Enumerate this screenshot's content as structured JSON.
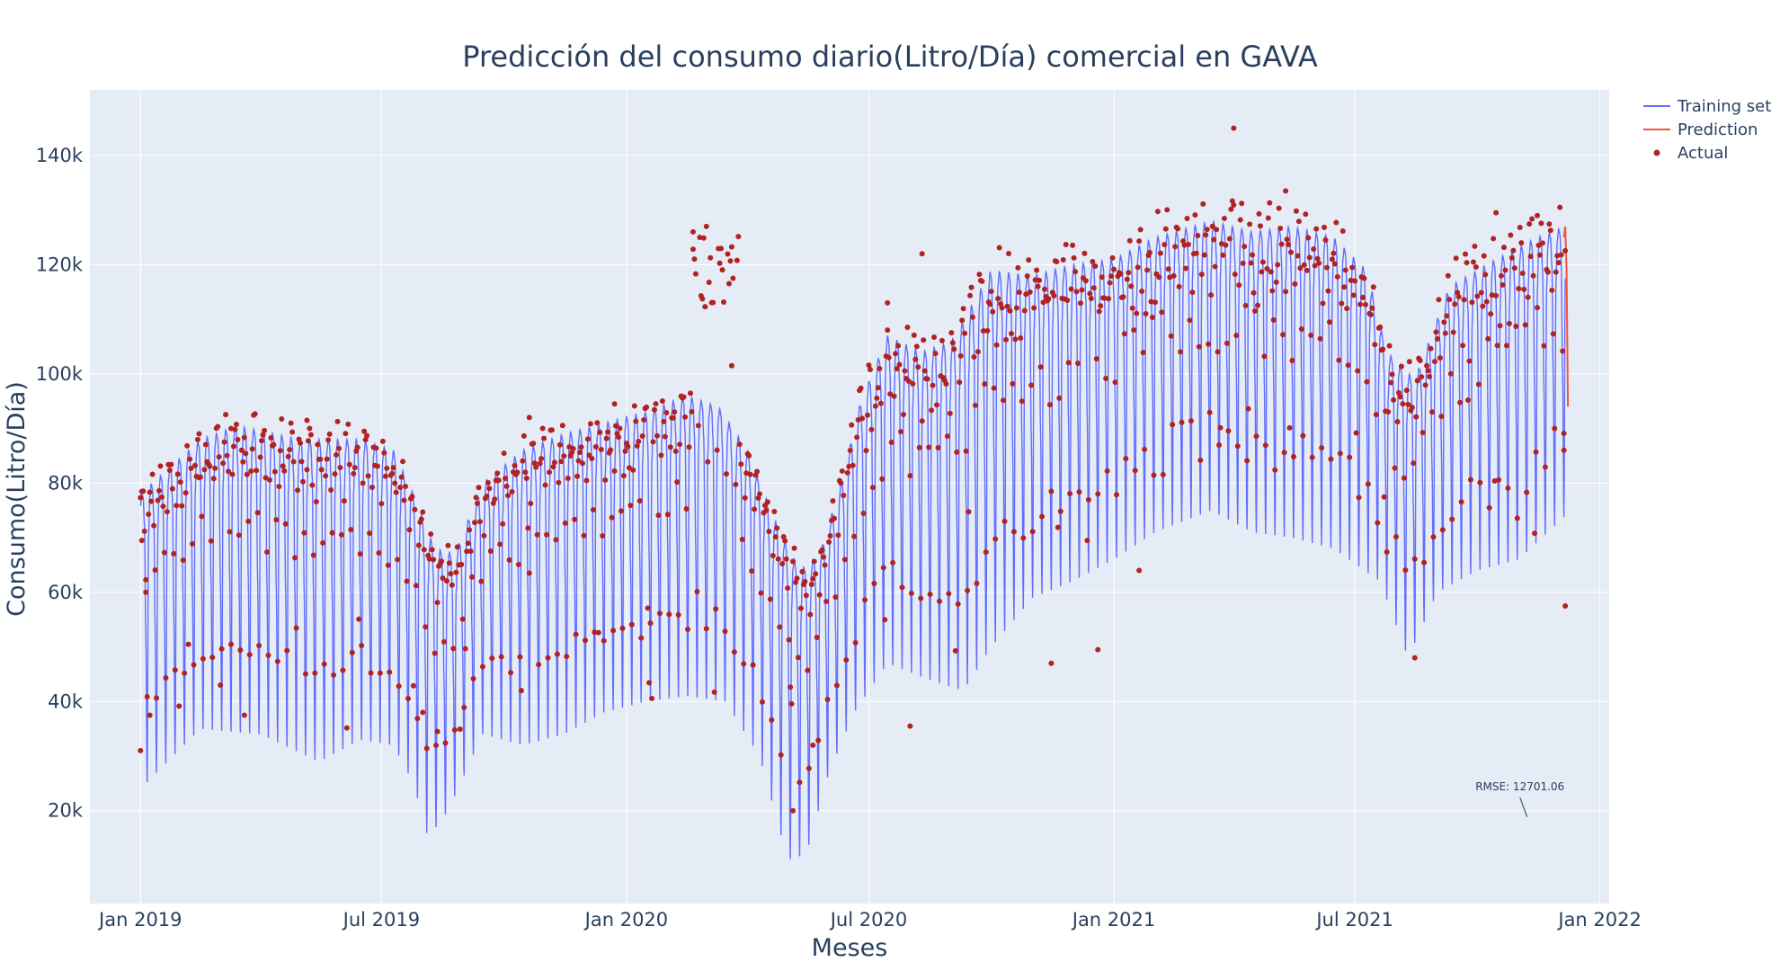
{
  "chart_data": {
    "type": "line",
    "title": "Predicción del consumo diario(Litro/Día) comercial en GAVA",
    "xlabel": "Meses",
    "ylabel": "Consumo(Litro/Día)",
    "x_range": [
      "2018-11-24",
      "2022-01-08"
    ],
    "ylim": [
      3000,
      152000
    ],
    "x_ticks": [
      {
        "date": "2019-01-01",
        "label": "Jan 2019"
      },
      {
        "date": "2019-07-01",
        "label": "Jul 2019"
      },
      {
        "date": "2020-01-01",
        "label": "Jan 2020"
      },
      {
        "date": "2020-07-01",
        "label": "Jul 2020"
      },
      {
        "date": "2021-01-01",
        "label": "Jan 2021"
      },
      {
        "date": "2021-07-01",
        "label": "Jul 2021"
      },
      {
        "date": "2022-01-01",
        "label": "Jan 2022"
      }
    ],
    "y_ticks": [
      {
        "value": 20000,
        "label": "20k"
      },
      {
        "value": 40000,
        "label": "40k"
      },
      {
        "value": 60000,
        "label": "60k"
      },
      {
        "value": 80000,
        "label": "80k"
      },
      {
        "value": 100000,
        "label": "100k"
      },
      {
        "value": 120000,
        "label": "120k"
      },
      {
        "value": 140000,
        "label": "140k"
      }
    ],
    "grid": true,
    "legend_position": "top-right",
    "colors": {
      "training": "#636efa",
      "prediction": "#ef553b",
      "actual": "#b22222",
      "plot_bg": "#e5ecf6",
      "grid": "#ffffff",
      "text": "#2a3f5f"
    },
    "series": [
      {
        "name": "Training set",
        "kind": "line",
        "start": "2019-01-01",
        "end": "2021-12-06",
        "period_days": 7,
        "weekly_high": [
          [
            "2019-01-01",
            78000
          ],
          [
            "2019-02-15",
            88000
          ],
          [
            "2019-03-15",
            90500
          ],
          [
            "2019-05-01",
            88000
          ],
          [
            "2019-06-15",
            88000
          ],
          [
            "2019-07-10",
            86000
          ],
          [
            "2019-07-25",
            78000
          ],
          [
            "2019-08-10",
            68000
          ],
          [
            "2019-08-25",
            67000
          ],
          [
            "2019-09-15",
            80000
          ],
          [
            "2019-10-15",
            86000
          ],
          [
            "2019-11-15",
            89000
          ],
          [
            "2019-12-15",
            91000
          ],
          [
            "2020-01-15",
            93000
          ],
          [
            "2020-02-15",
            96000
          ],
          [
            "2020-03-10",
            94000
          ],
          [
            "2020-04-01",
            86000
          ],
          [
            "2020-04-20",
            74000
          ],
          [
            "2020-05-10",
            64000
          ],
          [
            "2020-05-25",
            67000
          ],
          [
            "2020-06-10",
            80000
          ],
          [
            "2020-06-25",
            95000
          ],
          [
            "2020-07-15",
            107000
          ],
          [
            "2020-08-10",
            104000
          ],
          [
            "2020-09-01",
            106000
          ],
          [
            "2020-10-01",
            119000
          ],
          [
            "2020-11-01",
            118000
          ],
          [
            "2020-12-01",
            120000
          ],
          [
            "2021-01-01",
            121000
          ],
          [
            "2021-02-01",
            125000
          ],
          [
            "2021-03-15",
            128000
          ],
          [
            "2021-04-15",
            126000
          ],
          [
            "2021-05-15",
            127000
          ],
          [
            "2021-06-15",
            125000
          ],
          [
            "2021-07-10",
            119000
          ],
          [
            "2021-07-25",
            104000
          ],
          [
            "2021-08-15",
            99000
          ],
          [
            "2021-09-10",
            116000
          ],
          [
            "2021-10-15",
            121000
          ],
          [
            "2021-11-15",
            125000
          ],
          [
            "2021-12-06",
            127000
          ]
        ],
        "weekly_low": [
          [
            "2019-01-01",
            24000
          ],
          [
            "2019-02-15",
            35000
          ],
          [
            "2019-04-01",
            34000
          ],
          [
            "2019-05-15",
            29000
          ],
          [
            "2019-06-15",
            33000
          ],
          [
            "2019-07-10",
            32000
          ],
          [
            "2019-07-25",
            25000
          ],
          [
            "2019-08-05",
            15000
          ],
          [
            "2019-08-20",
            20000
          ],
          [
            "2019-09-15",
            34000
          ],
          [
            "2019-10-15",
            32000
          ],
          [
            "2019-11-15",
            34000
          ],
          [
            "2019-12-15",
            38000
          ],
          [
            "2020-01-15",
            40000
          ],
          [
            "2020-02-15",
            41000
          ],
          [
            "2020-03-15",
            40000
          ],
          [
            "2020-04-10",
            30000
          ],
          [
            "2020-05-01",
            11000
          ],
          [
            "2020-05-15",
            12000
          ],
          [
            "2020-06-01",
            27000
          ],
          [
            "2020-06-20",
            38000
          ],
          [
            "2020-07-15",
            47000
          ],
          [
            "2020-08-15",
            44000
          ],
          [
            "2020-09-10",
            42000
          ],
          [
            "2020-10-01",
            50000
          ],
          [
            "2020-11-01",
            59000
          ],
          [
            "2020-12-01",
            62000
          ],
          [
            "2021-01-01",
            66000
          ],
          [
            "2021-02-01",
            71000
          ],
          [
            "2021-03-15",
            75000
          ],
          [
            "2021-04-15",
            71000
          ],
          [
            "2021-05-15",
            70000
          ],
          [
            "2021-06-15",
            68000
          ],
          [
            "2021-07-20",
            62000
          ],
          [
            "2021-08-10",
            48000
          ],
          [
            "2021-09-01",
            60000
          ],
          [
            "2021-10-01",
            64000
          ],
          [
            "2021-11-01",
            66000
          ],
          [
            "2021-12-06",
            74000
          ]
        ]
      },
      {
        "name": "Prediction",
        "kind": "line",
        "points": [
          [
            "2021-12-05",
            125000
          ],
          [
            "2021-12-06",
            127000
          ],
          [
            "2021-12-07",
            119000
          ],
          [
            "2021-12-08",
            94000
          ]
        ]
      },
      {
        "name": "Actual",
        "kind": "scatter",
        "note": "daily observed values",
        "daily_count": 1072,
        "sample_points": [
          [
            "2019-01-01",
            31000
          ],
          [
            "2019-01-02",
            69500
          ],
          [
            "2019-01-05",
            60000
          ],
          [
            "2019-01-08",
            37500
          ],
          [
            "2019-02-14",
            81000
          ],
          [
            "2019-03-10",
            90000
          ],
          [
            "2019-03-20",
            37500
          ],
          [
            "2019-05-06",
            91500
          ],
          [
            "2019-08-01",
            38000
          ],
          [
            "2019-08-12",
            34500
          ],
          [
            "2019-10-20",
            92000
          ],
          [
            "2019-12-23",
            94500
          ],
          [
            "2020-02-20",
            126000
          ],
          [
            "2020-03-01",
            127000
          ],
          [
            "2020-03-20",
            101500
          ],
          [
            "2020-05-05",
            20000
          ],
          [
            "2020-05-20",
            32000
          ],
          [
            "2020-07-15",
            113000
          ],
          [
            "2020-08-01",
            35500
          ],
          [
            "2020-08-10",
            122000
          ],
          [
            "2020-11-15",
            47000
          ],
          [
            "2020-12-20",
            49500
          ],
          [
            "2021-01-20",
            64000
          ],
          [
            "2021-04-01",
            145000
          ],
          [
            "2021-05-10",
            133500
          ],
          [
            "2021-08-15",
            48000
          ],
          [
            "2021-10-15",
            129500
          ],
          [
            "2021-11-15",
            129000
          ],
          [
            "2021-12-05",
            86000
          ],
          [
            "2021-12-06",
            57500
          ]
        ]
      }
    ],
    "legend": [
      {
        "label": "Training set",
        "kind": "line"
      },
      {
        "label": "Prediction",
        "kind": "line"
      },
      {
        "label": "Actual",
        "kind": "marker"
      }
    ],
    "annotations": [
      {
        "text": "RMSE: 12701.06",
        "x": "2021-10-10",
        "y": 19500
      }
    ]
  }
}
